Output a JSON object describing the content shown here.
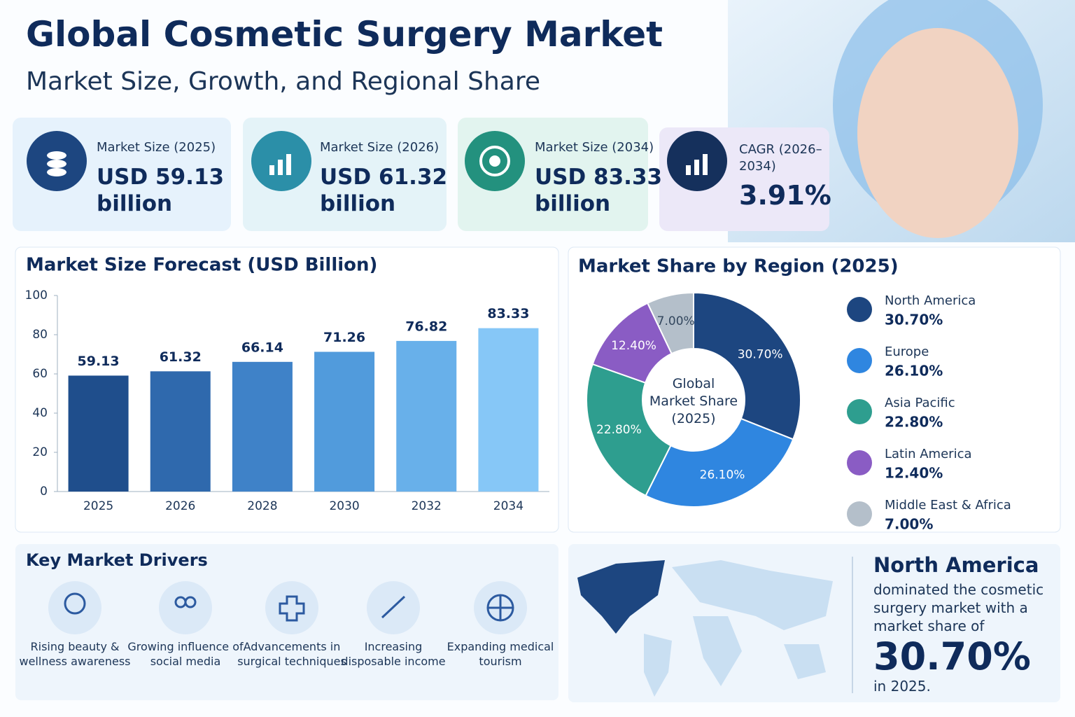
{
  "header": {
    "title": "Global Cosmetic Surgery Market",
    "subtitle": "Market Size, Growth, and Regional Share"
  },
  "kpis": [
    {
      "label": "Market Size (2025)",
      "value": "USD 59.13 billion"
    },
    {
      "label": "Market Size (2026)",
      "value": "USD 61.32 billion"
    },
    {
      "label": "Market Size (2034)",
      "value": "USD 83.33 billion"
    },
    {
      "label": "CAGR (2026–2034)",
      "value": "3.91%"
    }
  ],
  "chart_data": [
    {
      "type": "bar",
      "title": "Market Size Forecast (USD Billion)",
      "categories": [
        "2025",
        "2026",
        "2028",
        "2030",
        "2032",
        "2034"
      ],
      "values": [
        59.13,
        61.32,
        66.14,
        71.26,
        76.82,
        83.33
      ],
      "colors": [
        "#1f4e8c",
        "#2f69ad",
        "#3f82c8",
        "#519bdc",
        "#68b0ea",
        "#86c7f7"
      ],
      "ylim": [
        0,
        100
      ],
      "yticks": [
        0,
        20,
        40,
        60,
        80,
        100
      ]
    },
    {
      "type": "donut",
      "title": "Market Share by Region (2025)",
      "center_label": "Global Market Share (2025)",
      "categories": [
        "North America",
        "Europe",
        "Asia Pacific",
        "Latin America",
        "Middle East & Africa"
      ],
      "values": [
        30.7,
        26.1,
        22.8,
        12.4,
        7.0
      ],
      "value_labels": [
        "30.70%",
        "26.10%",
        "22.80%",
        "12.40%",
        "7.00%"
      ],
      "colors": [
        "#1d4680",
        "#2f86e0",
        "#2e9e8f",
        "#8a5cc4",
        "#b4bfca"
      ]
    }
  ],
  "drivers": {
    "title": "Key Market Drivers",
    "items": [
      "Rising beauty & wellness awareness",
      "Growing influence of social media",
      "Advancements in surgical techniques",
      "Increasing disposable income",
      "Expanding medical tourism"
    ]
  },
  "callout": {
    "region": "North America",
    "text": "dominated the cosmetic surgery market with a market share of",
    "value": "30.70%",
    "suffix": "in 2025."
  }
}
